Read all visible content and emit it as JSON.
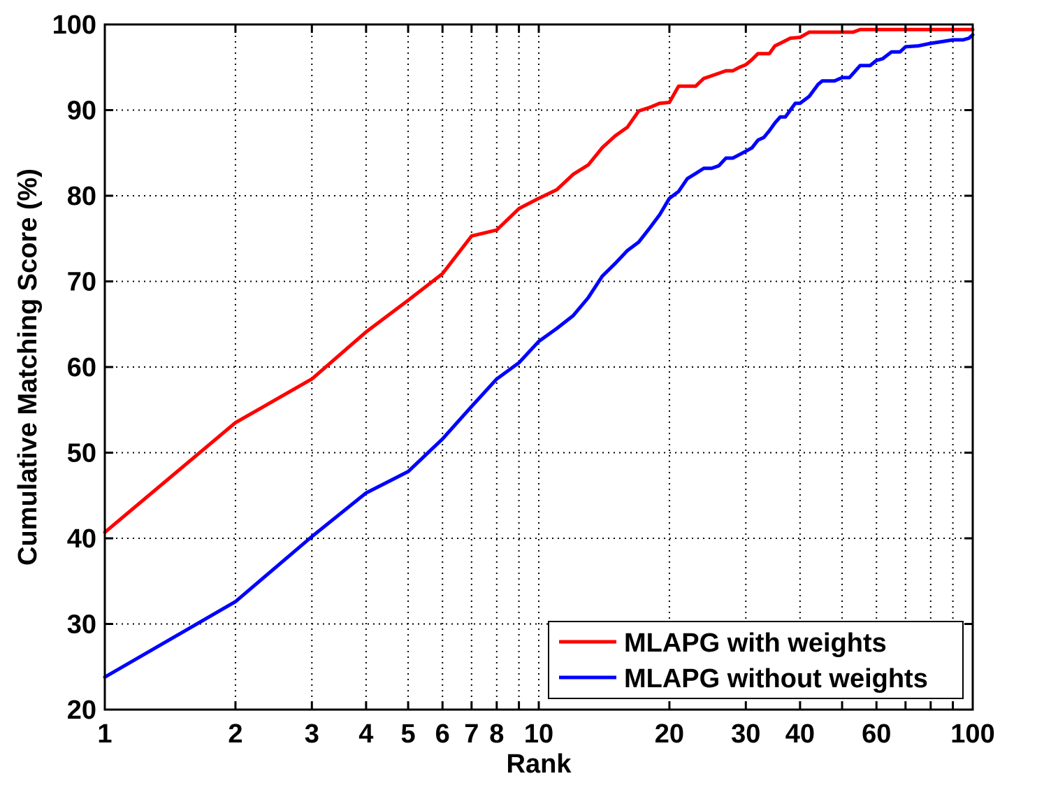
{
  "chart_data": {
    "type": "line",
    "title": "",
    "xlabel": "Rank",
    "ylabel": "Cumulative Matching Score (%)",
    "xscale": "log",
    "xlim": [
      1,
      100
    ],
    "ylim": [
      20,
      100
    ],
    "grid": true,
    "legend_position": "bottom-right",
    "x_ticks": [
      1,
      2,
      3,
      4,
      5,
      6,
      7,
      8,
      10,
      20,
      30,
      40,
      60,
      100
    ],
    "x_tick_labels": [
      "1",
      "2",
      "3",
      "4",
      "5",
      "6",
      "7",
      "8",
      "10",
      "20",
      "30",
      "40",
      "60",
      "100"
    ],
    "x_grid_values": [
      1,
      2,
      3,
      4,
      5,
      6,
      7,
      8,
      9,
      10,
      20,
      30,
      40,
      50,
      60,
      70,
      80,
      90,
      100
    ],
    "y_ticks": [
      20,
      30,
      40,
      50,
      60,
      70,
      80,
      90,
      100
    ],
    "y_tick_labels": [
      "20",
      "30",
      "40",
      "50",
      "60",
      "70",
      "80",
      "90",
      "100"
    ],
    "series": [
      {
        "name": "MLAPG with weights",
        "color": "#ff0000",
        "points": [
          [
            1,
            40.7
          ],
          [
            2,
            53.5
          ],
          [
            3,
            58.6
          ],
          [
            4,
            64.1
          ],
          [
            5,
            67.8
          ],
          [
            6,
            70.9
          ],
          [
            7,
            75.3
          ],
          [
            8,
            76.0
          ],
          [
            9,
            78.5
          ],
          [
            10,
            79.7
          ],
          [
            11,
            80.7
          ],
          [
            12,
            82.5
          ],
          [
            13,
            83.6
          ],
          [
            14,
            85.6
          ],
          [
            15,
            87.0
          ],
          [
            16,
            88.0
          ],
          [
            17,
            89.9
          ],
          [
            18,
            90.3
          ],
          [
            19,
            90.8
          ],
          [
            20,
            90.9
          ],
          [
            21,
            92.8
          ],
          [
            22,
            92.8
          ],
          [
            23,
            92.8
          ],
          [
            24,
            93.7
          ],
          [
            25,
            94.0
          ],
          [
            26,
            94.3
          ],
          [
            27,
            94.6
          ],
          [
            28,
            94.6
          ],
          [
            29,
            95.0
          ],
          [
            30,
            95.3
          ],
          [
            31,
            95.9
          ],
          [
            32,
            96.6
          ],
          [
            33,
            96.6
          ],
          [
            34,
            96.6
          ],
          [
            35,
            97.5
          ],
          [
            36,
            97.8
          ],
          [
            38,
            98.4
          ],
          [
            40,
            98.5
          ],
          [
            42,
            99.1
          ],
          [
            45,
            99.1
          ],
          [
            50,
            99.1
          ],
          [
            53,
            99.1
          ],
          [
            55,
            99.4
          ],
          [
            60,
            99.4
          ],
          [
            70,
            99.4
          ],
          [
            80,
            99.4
          ],
          [
            90,
            99.4
          ],
          [
            100,
            99.4
          ]
        ]
      },
      {
        "name": "MLAPG without weights",
        "color": "#0000ff",
        "points": [
          [
            1,
            23.8
          ],
          [
            2,
            32.6
          ],
          [
            3,
            40.2
          ],
          [
            4,
            45.3
          ],
          [
            5,
            47.8
          ],
          [
            6,
            51.6
          ],
          [
            7,
            55.4
          ],
          [
            8,
            58.6
          ],
          [
            9,
            60.5
          ],
          [
            10,
            63.0
          ],
          [
            11,
            64.5
          ],
          [
            12,
            66.0
          ],
          [
            13,
            68.1
          ],
          [
            14,
            70.6
          ],
          [
            15,
            72.1
          ],
          [
            16,
            73.6
          ],
          [
            17,
            74.6
          ],
          [
            18,
            76.2
          ],
          [
            19,
            77.8
          ],
          [
            20,
            79.7
          ],
          [
            21,
            80.5
          ],
          [
            22,
            82.0
          ],
          [
            23,
            82.6
          ],
          [
            24,
            83.2
          ],
          [
            25,
            83.2
          ],
          [
            26,
            83.5
          ],
          [
            27,
            84.4
          ],
          [
            28,
            84.4
          ],
          [
            29,
            84.8
          ],
          [
            30,
            85.2
          ],
          [
            31,
            85.6
          ],
          [
            32,
            86.5
          ],
          [
            33,
            86.8
          ],
          [
            34,
            87.6
          ],
          [
            35,
            88.5
          ],
          [
            36,
            89.2
          ],
          [
            37,
            89.2
          ],
          [
            38,
            90.0
          ],
          [
            39,
            90.8
          ],
          [
            40,
            90.8
          ],
          [
            42,
            91.6
          ],
          [
            44,
            93.0
          ],
          [
            45,
            93.4
          ],
          [
            48,
            93.4
          ],
          [
            50,
            93.8
          ],
          [
            52,
            93.8
          ],
          [
            55,
            95.2
          ],
          [
            58,
            95.2
          ],
          [
            60,
            95.8
          ],
          [
            62,
            96.0
          ],
          [
            65,
            96.8
          ],
          [
            68,
            96.8
          ],
          [
            70,
            97.4
          ],
          [
            75,
            97.5
          ],
          [
            80,
            97.8
          ],
          [
            85,
            98.0
          ],
          [
            90,
            98.2
          ],
          [
            95,
            98.2
          ],
          [
            98,
            98.4
          ],
          [
            100,
            98.8
          ]
        ]
      }
    ]
  }
}
